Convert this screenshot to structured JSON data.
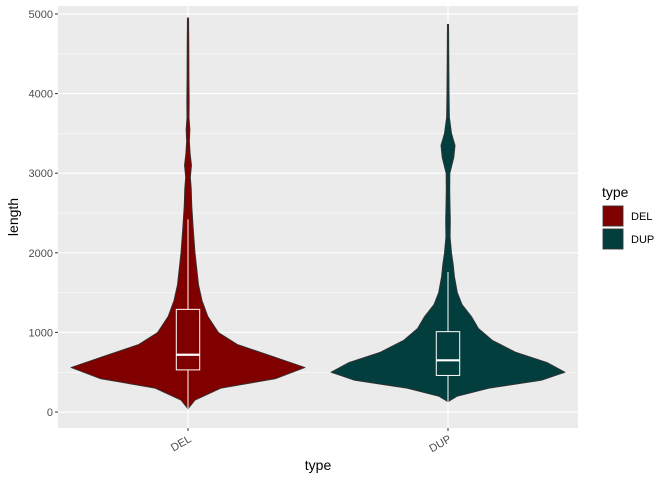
{
  "chart_data": {
    "type": "violin",
    "xlabel": "type",
    "ylabel": "length",
    "categories": [
      "DEL",
      "DUP"
    ],
    "ylim": [
      -200,
      5100
    ],
    "yticks": [
      0,
      1000,
      2000,
      3000,
      4000,
      5000
    ],
    "ytick_labels": [
      "0",
      "1000",
      "2000",
      "3000",
      "4000",
      "5000"
    ],
    "grid": true,
    "legend": {
      "title": "type",
      "placement": "right",
      "entries": [
        {
          "label": "DEL",
          "color": "#800000"
        },
        {
          "label": "DUP",
          "color": "#033E3E"
        }
      ]
    },
    "series": [
      {
        "category": "DEL",
        "color": "#800000",
        "box": {
          "whisker_low": 40,
          "q1": 530,
          "median": 720,
          "q3": 1290,
          "whisker_high": 2420
        },
        "violin_min": 40,
        "violin_max": 4950,
        "density_profile": [
          [
            40,
            0.0
          ],
          [
            150,
            0.06
          ],
          [
            300,
            0.28
          ],
          [
            420,
            0.75
          ],
          [
            560,
            1.0
          ],
          [
            700,
            0.72
          ],
          [
            850,
            0.42
          ],
          [
            1000,
            0.26
          ],
          [
            1200,
            0.17
          ],
          [
            1400,
            0.12
          ],
          [
            1600,
            0.09
          ],
          [
            1800,
            0.075
          ],
          [
            2000,
            0.06
          ],
          [
            2300,
            0.045
          ],
          [
            2600,
            0.032
          ],
          [
            2800,
            0.028
          ],
          [
            2950,
            0.02
          ],
          [
            3100,
            0.03
          ],
          [
            3250,
            0.018
          ],
          [
            3400,
            0.012
          ],
          [
            3550,
            0.016
          ],
          [
            3700,
            0.009
          ],
          [
            3900,
            0.01
          ],
          [
            4200,
            0.008
          ],
          [
            4600,
            0.007
          ],
          [
            4950,
            0.005
          ]
        ]
      },
      {
        "category": "DUP",
        "color": "#033E3E",
        "box": {
          "whisker_low": 130,
          "q1": 460,
          "median": 650,
          "q3": 1010,
          "whisker_high": 1760
        },
        "violin_min": 130,
        "violin_max": 4870,
        "density_profile": [
          [
            130,
            0.0
          ],
          [
            200,
            0.08
          ],
          [
            300,
            0.35
          ],
          [
            400,
            0.8
          ],
          [
            500,
            1.0
          ],
          [
            620,
            0.85
          ],
          [
            750,
            0.58
          ],
          [
            900,
            0.38
          ],
          [
            1050,
            0.26
          ],
          [
            1200,
            0.2
          ],
          [
            1350,
            0.12
          ],
          [
            1500,
            0.08
          ],
          [
            1700,
            0.055
          ],
          [
            1850,
            0.045
          ],
          [
            2000,
            0.03
          ],
          [
            2200,
            0.018
          ],
          [
            2400,
            0.02
          ],
          [
            2600,
            0.017
          ],
          [
            2800,
            0.015
          ],
          [
            3000,
            0.016
          ],
          [
            3200,
            0.05
          ],
          [
            3350,
            0.06
          ],
          [
            3500,
            0.03
          ],
          [
            3700,
            0.012
          ],
          [
            4000,
            0.009
          ],
          [
            4400,
            0.007
          ],
          [
            4870,
            0.005
          ]
        ]
      }
    ]
  }
}
